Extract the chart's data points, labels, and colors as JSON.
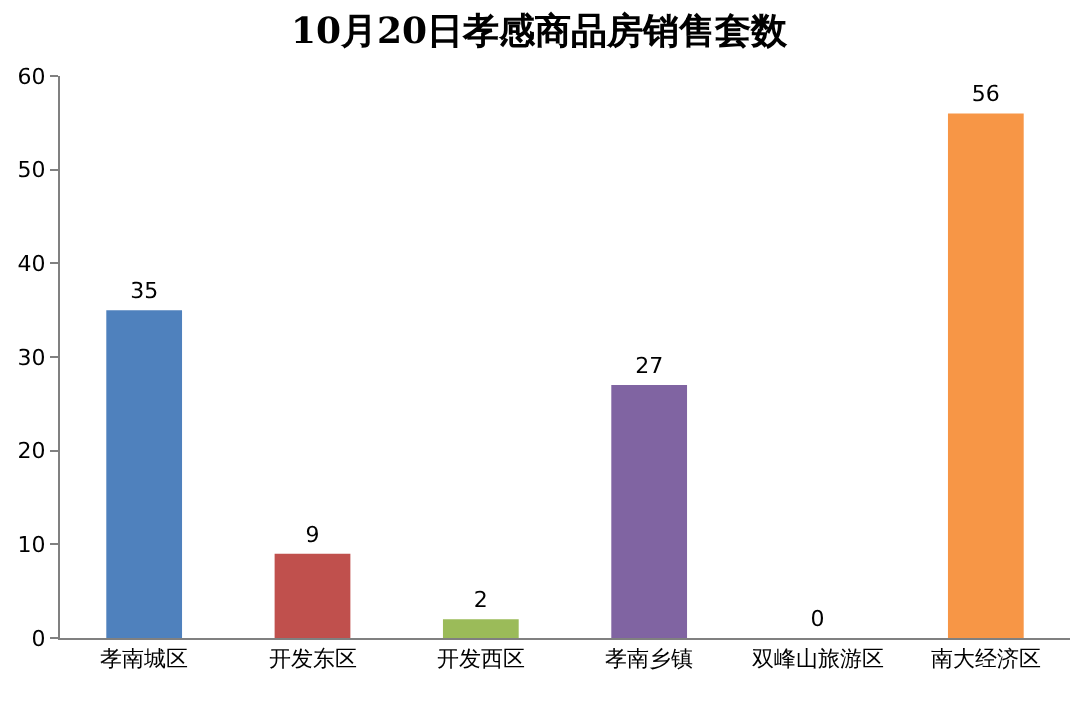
{
  "chart_data": {
    "type": "bar",
    "title": "10月20日孝感商品房销售套数",
    "categories": [
      "孝南城区",
      "开发东区",
      "开发西区",
      "孝南乡镇",
      "双峰山旅游区",
      "南大经济区"
    ],
    "values": [
      35,
      9,
      2,
      27,
      0,
      56
    ],
    "colors": [
      "#4f81bd",
      "#c0504d",
      "#9bbb59",
      "#8064a2",
      "#4bacc6",
      "#f79646"
    ],
    "ylim": [
      0,
      60
    ],
    "yticks": [
      0,
      10,
      20,
      30,
      40,
      50,
      60
    ],
    "data_labels": true
  }
}
